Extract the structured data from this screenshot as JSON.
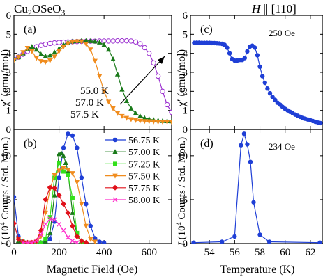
{
  "header": {
    "material_base": "Cu",
    "material_sub1": "2",
    "material_mid": "OSeO",
    "material_sub2": "3",
    "field_H": "H",
    "field_dir": " || [110]"
  },
  "chart_data": [
    {
      "panel_label": "(a)",
      "type": "line",
      "xlabel": "",
      "ylabel": "χ′ (emu/mol)",
      "xlim": [
        0,
        700
      ],
      "ylim": [
        0,
        6
      ],
      "x_ticks": [
        0,
        200,
        400,
        600
      ],
      "y_ticks": [
        0,
        1,
        2,
        3,
        4,
        5,
        6
      ],
      "arrow_labels": [
        "55.0 K",
        "57.0 K",
        "57.5 K"
      ],
      "series": [
        {
          "name": "55.0 K",
          "color": "#9b30d0",
          "marker": "open-circle",
          "x": [
            0,
            20,
            40,
            60,
            80,
            100,
            120,
            140,
            160,
            180,
            200,
            220,
            240,
            260,
            280,
            300,
            320,
            340,
            360,
            380,
            400,
            420,
            440,
            460,
            480,
            500,
            520,
            540,
            560,
            580,
            600,
            620,
            640,
            660,
            680,
            700
          ],
          "y": [
            3.7,
            3.8,
            3.95,
            4.1,
            4.25,
            4.35,
            4.42,
            4.48,
            4.52,
            4.55,
            4.57,
            4.59,
            4.6,
            4.61,
            4.62,
            4.63,
            4.63,
            4.64,
            4.64,
            4.65,
            4.65,
            4.65,
            4.65,
            4.66,
            4.66,
            4.66,
            4.65,
            4.6,
            4.5,
            4.3,
            4.0,
            3.5,
            2.8,
            2.0,
            1.3,
            0.9
          ]
        },
        {
          "name": "57.0 K",
          "color": "#1a7a1a",
          "marker": "filled-triangle-up",
          "x": [
            0,
            20,
            40,
            60,
            80,
            100,
            120,
            140,
            160,
            180,
            200,
            220,
            240,
            260,
            280,
            300,
            320,
            340,
            360,
            380,
            400,
            420,
            440,
            460,
            480,
            500,
            520,
            540,
            560,
            580,
            600,
            620,
            640,
            660,
            680,
            700
          ],
          "y": [
            3.7,
            3.8,
            4.0,
            4.25,
            4.35,
            4.2,
            3.95,
            3.85,
            3.9,
            4.05,
            4.25,
            4.45,
            4.58,
            4.63,
            4.65,
            4.66,
            4.66,
            4.65,
            4.63,
            4.58,
            4.45,
            4.2,
            3.7,
            2.9,
            2.1,
            1.5,
            1.1,
            0.85,
            0.7,
            0.6,
            0.55,
            0.5,
            0.47,
            0.45,
            0.44,
            0.43
          ]
        },
        {
          "name": "57.5 K",
          "color": "#f08c1e",
          "marker": "filled-triangle-down",
          "x": [
            0,
            20,
            40,
            60,
            80,
            100,
            120,
            140,
            160,
            180,
            200,
            220,
            240,
            260,
            280,
            300,
            320,
            340,
            360,
            380,
            400,
            420,
            440,
            460,
            480,
            500,
            520,
            540,
            560,
            580,
            600,
            620,
            640,
            660,
            680,
            700
          ],
          "y": [
            3.65,
            3.8,
            4.05,
            4.28,
            4.1,
            3.75,
            3.58,
            3.55,
            3.62,
            3.82,
            4.1,
            4.35,
            4.52,
            4.6,
            4.63,
            4.62,
            4.5,
            4.2,
            3.6,
            2.8,
            2.0,
            1.45,
            1.1,
            0.85,
            0.7,
            0.6,
            0.53,
            0.48,
            0.45,
            0.43,
            0.42,
            0.41,
            0.4,
            0.4,
            0.4,
            0.4
          ]
        }
      ]
    },
    {
      "panel_label": "(b)",
      "type": "line",
      "xlabel": "Magnetic Field (Oe)",
      "ylabel_main": "I",
      "ylabel_rest": " (10",
      "ylabel_sup": "4",
      "ylabel_tail": " Counts / Std. Mon.)",
      "xlim": [
        0,
        700
      ],
      "ylim": [
        0,
        13
      ],
      "x_ticks": [
        0,
        200,
        400,
        600
      ],
      "y_ticks": [
        0,
        5,
        10
      ],
      "legend_position": "right",
      "series": [
        {
          "name": "56.75 K",
          "color": "#1f3fd6",
          "marker": "filled-circle",
          "x": [
            0,
            20,
            40,
            60,
            80,
            100,
            120,
            140,
            160,
            180,
            200,
            220,
            240,
            260,
            280,
            300,
            320,
            340,
            360,
            380,
            400
          ],
          "y": [
            5.3,
            0.8,
            0.15,
            0.1,
            0.1,
            0.1,
            0.1,
            0.15,
            0.5,
            2.5,
            7.5,
            10.9,
            12.5,
            12.3,
            10.9,
            7.5,
            4.5,
            2.0,
            0.6,
            0.2,
            0.1
          ]
        },
        {
          "name": "57.00 K",
          "color": "#1a7a1a",
          "marker": "filled-triangle-up",
          "x": [
            20,
            40,
            60,
            80,
            100,
            120,
            140,
            160,
            180,
            200,
            210,
            220,
            230,
            240,
            260,
            280,
            300,
            320
          ],
          "y": [
            0.3,
            0.1,
            0.1,
            0.1,
            0.1,
            0.1,
            0.2,
            1.2,
            5.5,
            10.2,
            10.3,
            10.0,
            9.2,
            8.2,
            3.5,
            1.0,
            0.3,
            0.1
          ]
        },
        {
          "name": "57.25 K",
          "color": "#33e01a",
          "marker": "filled-square",
          "x": [
            40,
            60,
            80,
            100,
            120,
            140,
            160,
            180,
            200,
            220,
            240,
            260,
            280,
            300
          ],
          "y": [
            0.2,
            0.1,
            0.1,
            0.1,
            0.1,
            0.5,
            3.0,
            7.5,
            9.2,
            8.2,
            7.8,
            5.2,
            1.2,
            0.2
          ]
        },
        {
          "name": "57.50 K",
          "color": "#f08c1e",
          "marker": "filled-triangle-down",
          "x": [
            20,
            40,
            60,
            80,
            100,
            120,
            140,
            160,
            180,
            200,
            220,
            240,
            260,
            280,
            300,
            320,
            340,
            360
          ],
          "y": [
            0.5,
            0.1,
            0.1,
            0.1,
            0.2,
            0.8,
            3.5,
            6.2,
            7.8,
            8.3,
            8.6,
            8.4,
            8.0,
            7.0,
            4.5,
            2.0,
            0.5,
            0.2
          ]
        },
        {
          "name": "57.75 K",
          "color": "#e0101a",
          "marker": "filled-diamond",
          "x": [
            0,
            20,
            40,
            60,
            80,
            100,
            120,
            140,
            160,
            180,
            200,
            220,
            240,
            260,
            280,
            300,
            320
          ],
          "y": [
            2.3,
            0.5,
            0.2,
            0.1,
            0.1,
            0.3,
            1.5,
            5.0,
            6.4,
            6.3,
            5.5,
            4.5,
            3.5,
            2.0,
            0.8,
            0.3,
            0.1
          ]
        },
        {
          "name": "58.00 K",
          "color": "#ff33cc",
          "marker": "x",
          "x": [
            40,
            60,
            80,
            100,
            120,
            140,
            160,
            180,
            200,
            220,
            240,
            260,
            280
          ],
          "y": [
            0.1,
            0.1,
            0.1,
            0.3,
            1.0,
            2.2,
            2.8,
            2.7,
            2.2,
            1.5,
            0.7,
            0.3,
            0.1
          ]
        }
      ]
    },
    {
      "panel_label": "(c)",
      "type": "line",
      "annotation": "250 Oe",
      "xlabel": "",
      "ylabel": "χ′ (emu/mol)",
      "xlim": [
        52.5,
        63
      ],
      "ylim": [
        0,
        6
      ],
      "x_ticks": [
        54,
        56,
        58,
        60,
        62
      ],
      "y_ticks": [
        0,
        1,
        2,
        3,
        4,
        5,
        6
      ],
      "series": [
        {
          "name": "",
          "color": "#1f3fd6",
          "marker": "filled-circle",
          "x": [
            52.8,
            53.0,
            53.2,
            53.4,
            53.6,
            53.8,
            54.0,
            54.2,
            54.4,
            54.6,
            54.8,
            55.0,
            55.2,
            55.4,
            55.6,
            55.8,
            56.0,
            56.2,
            56.4,
            56.6,
            56.8,
            57.0,
            57.2,
            57.4,
            57.6,
            57.8,
            58.0,
            58.2,
            58.4,
            58.6,
            58.8,
            59.0,
            59.2,
            59.4,
            59.6,
            59.8,
            60.0,
            60.2,
            60.4,
            60.6,
            60.8,
            61.0,
            61.2,
            61.4,
            61.6,
            61.8,
            62.0,
            62.2,
            62.4,
            62.6,
            62.8
          ],
          "y": [
            4.55,
            4.56,
            4.56,
            4.55,
            4.55,
            4.55,
            4.55,
            4.54,
            4.54,
            4.53,
            4.52,
            4.5,
            4.45,
            4.3,
            4.0,
            3.7,
            3.62,
            3.62,
            3.65,
            3.65,
            3.75,
            4.1,
            4.35,
            4.4,
            4.3,
            3.9,
            3.3,
            2.8,
            2.45,
            2.15,
            1.9,
            1.7,
            1.55,
            1.4,
            1.3,
            1.18,
            1.08,
            1.0,
            0.92,
            0.85,
            0.78,
            0.72,
            0.66,
            0.61,
            0.56,
            0.52,
            0.48,
            0.44,
            0.4,
            0.36,
            0.33
          ]
        }
      ]
    },
    {
      "panel_label": "(d)",
      "type": "line",
      "annotation": "234 Oe",
      "xlabel": "Temperature (K)",
      "ylabel_main": "I",
      "ylabel_rest": " (10",
      "ylabel_sup": "4",
      "ylabel_tail": " Counts / Std. Mon.)",
      "xlim": [
        52.5,
        63
      ],
      "ylim": [
        0,
        13
      ],
      "x_ticks": [
        54,
        56,
        58,
        60,
        62
      ],
      "y_ticks": [
        0,
        5,
        10
      ],
      "series": [
        {
          "name": "",
          "color": "#1f3fd6",
          "marker": "filled-circle",
          "x": [
            52.75,
            55.0,
            56.0,
            56.5,
            56.75,
            57.0,
            57.25,
            57.5,
            58.0,
            58.75,
            62.75
          ],
          "y": [
            0.1,
            0.2,
            0.8,
            11.2,
            12.5,
            11.3,
            9.3,
            4.7,
            1.0,
            0.2,
            0.1
          ]
        }
      ]
    }
  ]
}
